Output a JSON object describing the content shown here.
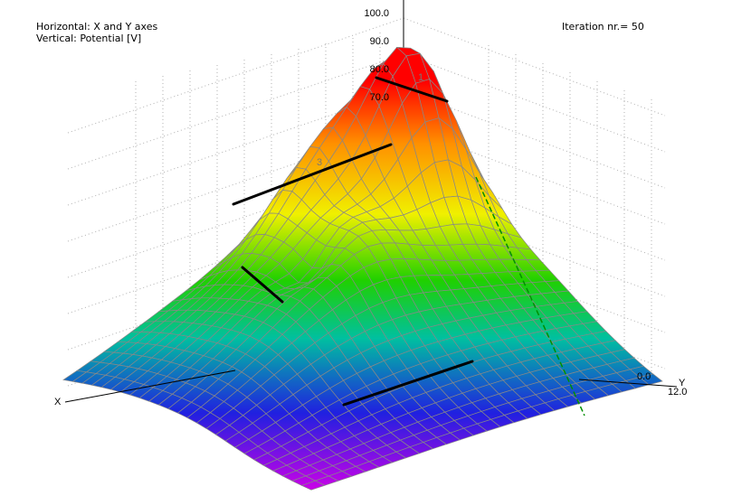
{
  "header": {
    "horizontal_label": "Horizontal: X and Y axes",
    "vertical_label": "Vertical: Potential [V]",
    "iteration_label": "Iteration nr.= 50"
  },
  "colors": {
    "scale": [
      "#d800e8",
      "#2020e0",
      "#00c0a0",
      "#20d000",
      "#f0f000",
      "#ff9000",
      "#ff0000"
    ],
    "grid_line": "#888888",
    "electrode": "#000000"
  },
  "chart_data": {
    "type": "surface",
    "zlim": [
      0,
      100
    ],
    "z_ticks": [
      {
        "value": 100,
        "label": "100.0"
      },
      {
        "value": 90,
        "label": "90.0"
      },
      {
        "value": 80,
        "label": "80.0"
      },
      {
        "value": 70,
        "label": "70.0"
      }
    ],
    "axes": {
      "x": {
        "label": "X"
      },
      "y": {
        "label": "Y",
        "max_label": "12.0",
        "partial_label": "0.0"
      }
    },
    "peak_potential": 100,
    "electrode_labels": [
      "1",
      "3"
    ],
    "colormap": "rainbow"
  }
}
